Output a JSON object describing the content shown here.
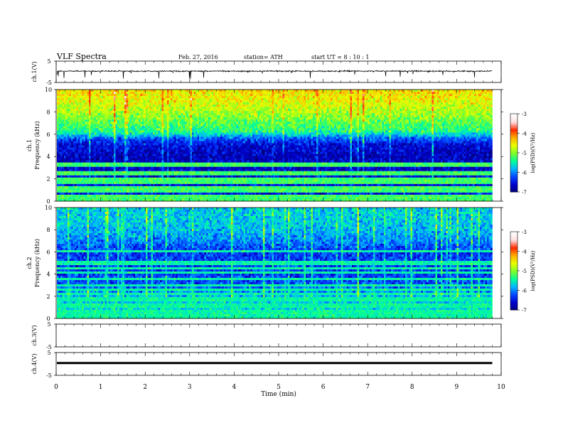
{
  "header": {
    "title": "VLF  Spectra",
    "date": "Feb. 27, 2016",
    "station": "station= ATH",
    "start": "start  UT  =   8  : 10 : 1"
  },
  "colors": {
    "trace": "#000000",
    "frame": "#000000",
    "colormap": [
      "#00007a",
      "#0000cc",
      "#0044ff",
      "#00b4ff",
      "#00ff9a",
      "#7cff2a",
      "#e8ff00",
      "#ffb000",
      "#ff2a00",
      "#ffe0e0",
      "#ffffff"
    ]
  },
  "chart_data": [
    {
      "type": "line",
      "panel": "ch1-waveform",
      "ylabel": "ch.1(V)",
      "ylim": [
        -5,
        5
      ],
      "yticks": [
        "5",
        "-5"
      ],
      "x_units": "min",
      "baseline_v": 0.3,
      "noise_v": 0.6,
      "spike_v": 2.5
    },
    {
      "type": "heatmap",
      "panel": "ch1-spectrogram",
      "ylabel": "ch.1\nFrequency  (kHz)",
      "ylim": [
        0,
        10
      ],
      "yticks": [
        "0",
        "2",
        "4",
        "6",
        "8",
        "10"
      ],
      "z_range": [
        -7,
        -3
      ],
      "colorbar_label": "log(PSD)(V²/Hz)",
      "colorbar_ticks": [
        "-7",
        "-6",
        "-5",
        "-4",
        "-3"
      ],
      "profile_khz": [
        0,
        0.5,
        1,
        2,
        3,
        4,
        5,
        5.6,
        6.2,
        7,
        8,
        9,
        10
      ],
      "profile_level": [
        -5.8,
        -6.2,
        -6.3,
        -6.4,
        -6.5,
        -6.6,
        -6.4,
        -5.9,
        -4.9,
        -4.6,
        -4.2,
        -3.9,
        -3.7
      ],
      "tones_khz": [
        0.15,
        0.3,
        0.55,
        0.8,
        1.05,
        1.3,
        1.55,
        1.8,
        2.05,
        2.5,
        3.1,
        3.35
      ],
      "tone_level": -4.7
    },
    {
      "type": "heatmap",
      "panel": "ch2-spectrogram",
      "ylabel": "ch.2\nFrequency  (kHz)",
      "ylim": [
        0,
        10
      ],
      "yticks": [
        "0",
        "2",
        "4",
        "6",
        "8",
        "10"
      ],
      "z_range": [
        -7,
        -3
      ],
      "colorbar_label": "log(PSD)(V²/Hz)",
      "colorbar_ticks": [
        "-7",
        "-6",
        "-5",
        "-4",
        "-3"
      ],
      "profile_khz": [
        0,
        0.5,
        1,
        2,
        3,
        4,
        5,
        6,
        7,
        8,
        9,
        10
      ],
      "profile_level": [
        -5.2,
        -5.3,
        -5.2,
        -5.4,
        -5.9,
        -6.1,
        -6.0,
        -6.1,
        -5.7,
        -5.4,
        -5.3,
        -5.3
      ],
      "tones_khz": [
        0.2,
        0.45,
        0.75,
        1.0,
        1.3,
        1.6,
        1.9,
        2.25,
        2.55,
        2.9,
        3.6,
        4.1,
        4.6,
        5.0,
        6.1
      ],
      "tone_level": -5.0
    },
    {
      "type": "line",
      "panel": "ch3-waveform",
      "ylabel": "ch.3(V)",
      "ylim": [
        -5,
        5
      ],
      "yticks": [
        "5",
        "-5"
      ]
    },
    {
      "type": "line",
      "panel": "ch4-waveform",
      "ylabel": "ch.4(V)",
      "ylim": [
        -5,
        5
      ],
      "yticks": [
        "5",
        "-5"
      ],
      "baseline_v": 0.4
    }
  ],
  "xaxis": {
    "label": "Time  (min)",
    "range": [
      0,
      10
    ],
    "data_end": 9.8,
    "ticks": [
      "0",
      "1",
      "2",
      "3",
      "4",
      "5",
      "6",
      "7",
      "8",
      "9",
      "10"
    ]
  }
}
